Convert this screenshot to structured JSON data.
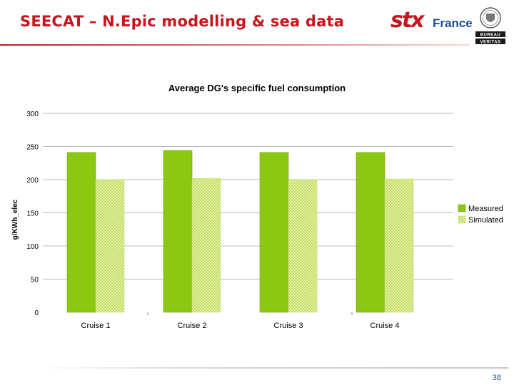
{
  "slide": {
    "title": "SEECAT – N.Epic modelling & sea data",
    "page_number": "38"
  },
  "logos": {
    "stx": "stx",
    "france": "France",
    "bureau_veritas": "BUREAU VERITAS"
  },
  "colors": {
    "title_red": "#c5161d",
    "measured": "#8cc712",
    "simulated": "#e8f5a0"
  },
  "chart_data": {
    "type": "bar",
    "title": "Average DG's specific fuel consumption",
    "xlabel": "",
    "ylabel": "g/KWh_elec",
    "categories": [
      "Cruise 1",
      "Cruise 2",
      "Cruise 3",
      "Cruise 4"
    ],
    "series": [
      {
        "name": "Measured",
        "values": [
          241,
          244,
          241,
          241
        ]
      },
      {
        "name": "Simulated",
        "values": [
          200,
          202,
          200,
          201
        ]
      }
    ],
    "ylim": [
      0,
      300
    ],
    "yticks": [
      0,
      50,
      100,
      150,
      200,
      250,
      300
    ],
    "grid": true,
    "legend": "right"
  }
}
